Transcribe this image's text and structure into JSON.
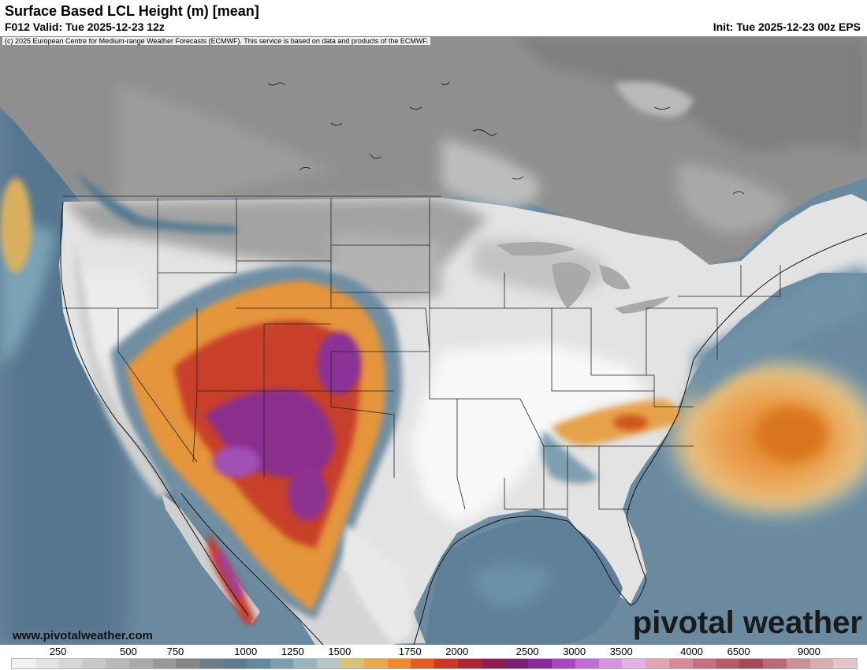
{
  "header": {
    "title": "Surface Based LCL Height (m) [mean]",
    "valid": "F012 Valid: Tue 2025-12-23 12z",
    "init": "Init: Tue 2025-12-23 00z EPS"
  },
  "map": {
    "copyright": "(c) 2025 European Centre for Medium-range Weather Forecasts (ECMWF). This service is based on data and products of the ECMWF."
  },
  "footer": {
    "website": "www.pivotalweather.com",
    "brand": "pivotal weather"
  },
  "legend": {
    "labels": [
      "250",
      "500",
      "750",
      "1000",
      "1250",
      "1500",
      "1750",
      "2000",
      "2500",
      "3000",
      "3500",
      "4000",
      "6500",
      "9000"
    ],
    "colors": [
      "#f2f2f2",
      "#e4e4e4",
      "#d6d6d6",
      "#c8c8c8",
      "#b9b9b9",
      "#a9a9a9",
      "#989898",
      "#878787",
      "#707d89",
      "#5c7a90",
      "#628a9e",
      "#7a9fb0",
      "#97b4c0",
      "#b5c7c6",
      "#d7c27a",
      "#e8a94c",
      "#ec8a2c",
      "#e25d24",
      "#c73a28",
      "#a82738",
      "#8c1f52",
      "#7a1e74",
      "#8a2a9a",
      "#a649c0",
      "#c06ed2",
      "#d893de",
      "#e8b0e2",
      "#e0a7b3",
      "#d78a9c",
      "#c86e82",
      "#b75a6c",
      "#a5495a",
      "#b86a78",
      "#cc8e98",
      "#dcaab3",
      "#e8c4ca"
    ]
  },
  "colors": {
    "ocean": "#5c7d95",
    "land_gray": "#8e8e8e",
    "land_light": "#d9d9d9",
    "warm_orange": "#e8842c",
    "hot_red": "#c8321f",
    "purple": "#8a2a9a"
  }
}
